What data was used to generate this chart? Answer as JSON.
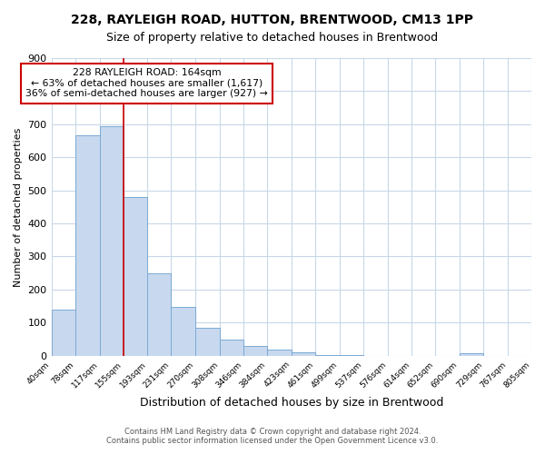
{
  "title": "228, RAYLEIGH ROAD, HUTTON, BRENTWOOD, CM13 1PP",
  "subtitle": "Size of property relative to detached houses in Brentwood",
  "xlabel": "Distribution of detached houses by size in Brentwood",
  "ylabel": "Number of detached properties",
  "bar_color": "#c8d8ee",
  "bar_edge_color": "#7aaad4",
  "background_color": "#ffffff",
  "grid_color": "#c8d8e8",
  "annotation_line1": "228 RAYLEIGH ROAD: 164sqm",
  "annotation_line2": "← 63% of detached houses are smaller (1,617)",
  "annotation_line3": "36% of semi-detached houses are larger (927) →",
  "vline_x": 155,
  "vline_color": "#cc0000",
  "bin_edges": [
    40,
    78,
    117,
    155,
    193,
    231,
    270,
    308,
    346,
    384,
    423,
    461,
    499,
    537,
    576,
    614,
    652,
    690,
    729,
    767,
    805
  ],
  "bin_counts": [
    140,
    667,
    695,
    480,
    248,
    148,
    85,
    50,
    30,
    18,
    10,
    3,
    1,
    0,
    0,
    0,
    0,
    8,
    0,
    0
  ],
  "ylim": [
    0,
    900
  ],
  "yticks": [
    0,
    100,
    200,
    300,
    400,
    500,
    600,
    700,
    800,
    900
  ],
  "footer_line1": "Contains HM Land Registry data © Crown copyright and database right 2024.",
  "footer_line2": "Contains public sector information licensed under the Open Government Licence v3.0."
}
